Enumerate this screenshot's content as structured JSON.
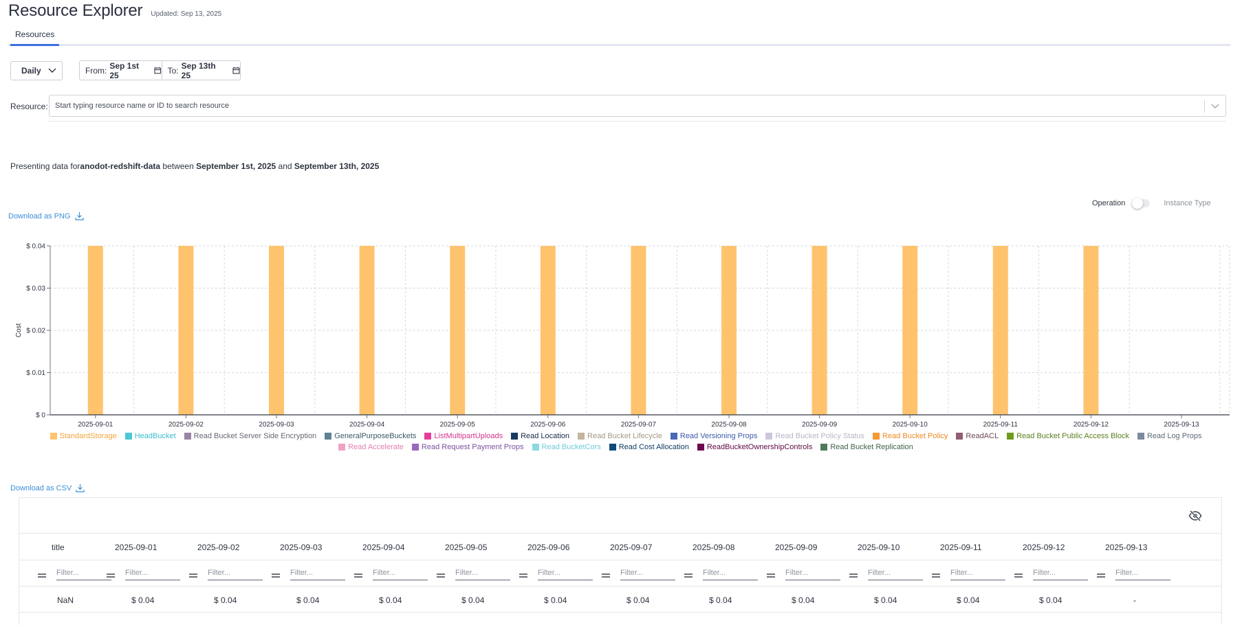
{
  "header": {
    "title": "Resource Explorer",
    "updated": "Updated: Sep 13, 2025"
  },
  "tabs": [
    {
      "label": "Resources",
      "active": true
    }
  ],
  "controls": {
    "granularity": "Daily",
    "from_label": "From:",
    "from_value": "Sep 1st 25",
    "to_label": "To:",
    "to_value": "Sep 13th 25",
    "resource_label": "Resource:",
    "resource_placeholder": "Start typing resource name or ID to search resource"
  },
  "presenting": {
    "prefix": "Presenting data for",
    "resource": "anodot-redshift-data",
    "between": " between ",
    "start": "September 1st, 2025",
    "and": " and ",
    "end": "September 13th, 2025"
  },
  "download_png": "Download as PNG",
  "download_csv": "Download as CSV",
  "toggle": {
    "left_label": "Operation",
    "right_label": "Instance Type",
    "state": "Operation"
  },
  "chart_data": {
    "type": "bar",
    "ylabel": "Cost",
    "ylim": [
      0,
      0.04
    ],
    "y_ticks": [
      "$ 0",
      "$ 0.01",
      "$ 0.02",
      "$ 0.03",
      "$ 0.04"
    ],
    "y_tick_values": [
      0,
      0.01,
      0.02,
      0.03,
      0.04
    ],
    "categories": [
      "2025-09-01",
      "2025-09-02",
      "2025-09-03",
      "2025-09-04",
      "2025-09-05",
      "2025-09-06",
      "2025-09-07",
      "2025-09-08",
      "2025-09-09",
      "2025-09-10",
      "2025-09-11",
      "2025-09-12",
      "2025-09-13"
    ],
    "series": [
      {
        "name": "StandardStorage",
        "color": "#ffc36e",
        "values": [
          0.04,
          0.04,
          0.04,
          0.04,
          0.04,
          0.04,
          0.04,
          0.04,
          0.04,
          0.04,
          0.04,
          0.04,
          null
        ]
      }
    ],
    "grid": true,
    "legend_position": "bottom",
    "legend": [
      {
        "name": "StandardStorage",
        "color": "#ffc36e",
        "text_color": "#f2a43a"
      },
      {
        "name": "HeadBucket",
        "color": "#4cc7d6",
        "text_color": "#3bbcd0"
      },
      {
        "name": "Read Bucket Server Side Encryption",
        "color": "#9a84a4",
        "text_color": "#6c6473"
      },
      {
        "name": "GeneralPurposeBuckets",
        "color": "#5d8394",
        "text_color": "#3b5868"
      },
      {
        "name": "ListMultipartUploads",
        "color": "#e63d9a",
        "text_color": "#d4338b"
      },
      {
        "name": "Read Location",
        "color": "#173a60",
        "text_color": "#142b46"
      },
      {
        "name": "Read Bucket Lifecycle",
        "color": "#c4b49e",
        "text_color": "#a39684"
      },
      {
        "name": "Read Versioning Props",
        "color": "#4a68b6",
        "text_color": "#3b5aa8"
      },
      {
        "name": "Read Bucket Policy Status",
        "color": "#ccc8dc",
        "text_color": "#b8b4c6"
      },
      {
        "name": "Read Bucket Policy",
        "color": "#f59836",
        "text_color": "#f08a22"
      },
      {
        "name": "ReadACL",
        "color": "#8e5e73",
        "text_color": "#6f4a5a"
      },
      {
        "name": "Read Bucket Public Access Block",
        "color": "#6e9a1e",
        "text_color": "#5c7f1c"
      },
      {
        "name": "Read Log Props",
        "color": "#7b8b9c",
        "text_color": "#5c6977"
      },
      {
        "name": "Read Accelerate",
        "color": "#f1a2c8",
        "text_color": "#e27fb1"
      },
      {
        "name": "Read Request Payment Props",
        "color": "#9a6ac0",
        "text_color": "#7b52a0"
      },
      {
        "name": "Read BucketCors",
        "color": "#8ad9e2",
        "text_color": "#6ccbd8"
      },
      {
        "name": "Read Cost Allocation",
        "color": "#0e4b78",
        "text_color": "#0e3d64"
      },
      {
        "name": "ReadBucketOwnershipControls",
        "color": "#6e0a4c",
        "text_color": "#5e0941"
      },
      {
        "name": "Read Bucket Replication",
        "color": "#4f7a5c",
        "text_color": "#3f6049"
      }
    ]
  },
  "table": {
    "headers": [
      "title",
      "2025-09-01",
      "2025-09-02",
      "2025-09-03",
      "2025-09-04",
      "2025-09-05",
      "2025-09-06",
      "2025-09-07",
      "2025-09-08",
      "2025-09-09",
      "2025-09-10",
      "2025-09-11",
      "2025-09-12",
      "2025-09-13"
    ],
    "filter_placeholder": "Filter...",
    "rows": [
      [
        "NaN",
        "$ 0.04",
        "$ 0.04",
        "$ 0.04",
        "$ 0.04",
        "$ 0.04",
        "$ 0.04",
        "$ 0.04",
        "$ 0.04",
        "$ 0.04",
        "$ 0.04",
        "$ 0.04",
        "$ 0.04",
        "-"
      ]
    ]
  }
}
